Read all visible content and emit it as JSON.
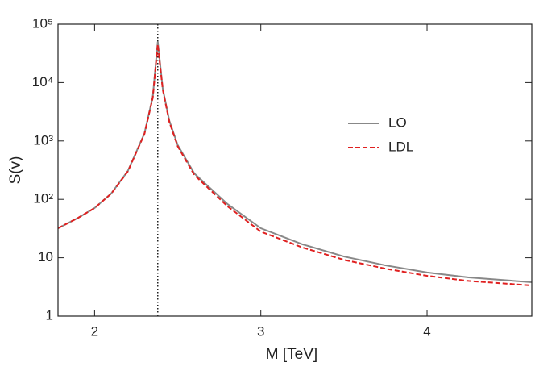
{
  "chart_data": {
    "type": "line",
    "xlabel": "M [TeV]",
    "ylabel": "S(v)",
    "x": [
      1.78,
      1.9,
      2.0,
      2.1,
      2.2,
      2.3,
      2.35,
      2.38,
      2.41,
      2.45,
      2.5,
      2.6,
      2.8,
      3.0,
      3.25,
      3.5,
      3.75,
      4.0,
      4.25,
      4.63
    ],
    "series": [
      {
        "name": "LO",
        "color": "#888888",
        "dash": false,
        "values": [
          32,
          48,
          71,
          126,
          306,
          1350,
          5700,
          50000,
          7900,
          2200,
          850,
          277,
          83,
          32,
          17,
          10.5,
          7.4,
          5.6,
          4.6,
          3.8
        ]
      },
      {
        "name": "LDL",
        "color": "#e02020",
        "dash": true,
        "values": [
          32,
          48,
          71,
          125,
          300,
          1320,
          5500,
          45000,
          7600,
          2100,
          810,
          262,
          76,
          28,
          15,
          9.2,
          6.5,
          4.9,
          4.0,
          3.35
        ]
      }
    ],
    "vline": 2.38,
    "xlim": [
      1.78,
      4.63
    ],
    "xticks": [
      2,
      3,
      4
    ],
    "ylim": [
      1,
      100000
    ],
    "ylog": true,
    "yticks": [
      1,
      10,
      {
        "value": 100,
        "label": "10²"
      },
      {
        "value": 1000,
        "label": "10³"
      },
      {
        "value": 10000,
        "label": "10⁴"
      },
      {
        "value": 100000,
        "label": "10⁵"
      }
    ],
    "legend": "right"
  }
}
